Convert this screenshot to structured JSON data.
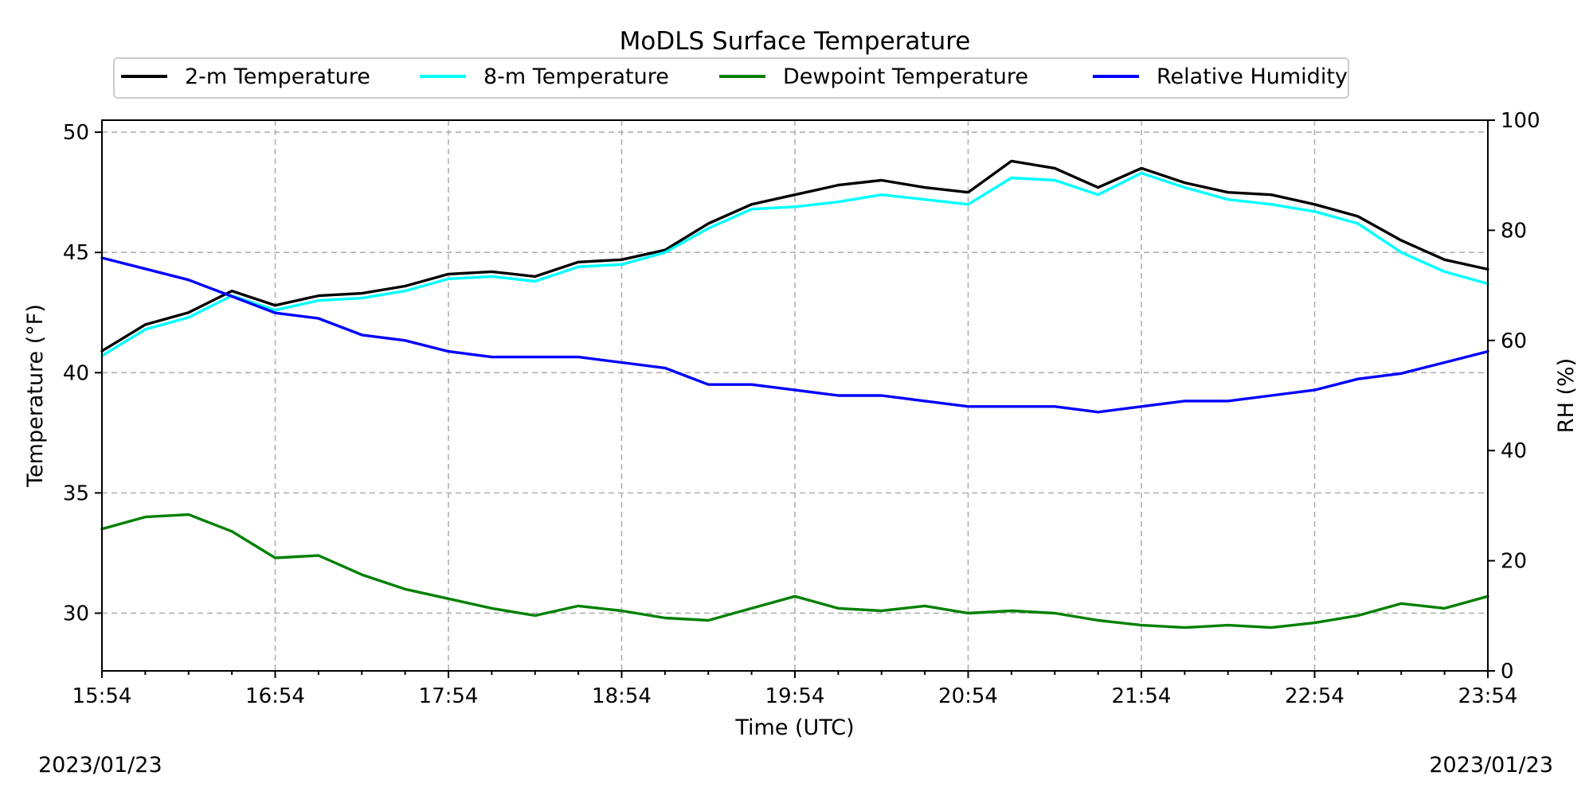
{
  "chart_data": {
    "type": "line",
    "title": "MoDLS Surface Temperature",
    "xlabel": "Time (UTC)",
    "ylabel": "Temperature ($^\\circ$F)",
    "ylabel_display": "Temperature (°F)",
    "y2label": "RH (%)",
    "x_ticks": [
      "15:54",
      "16:54",
      "17:54",
      "18:54",
      "19:54",
      "20:54",
      "21:54",
      "22:54",
      "23:54"
    ],
    "x_range_hours": [
      0,
      8
    ],
    "ylim": [
      27.6,
      50.5
    ],
    "y_ticks": [
      30,
      35,
      40,
      45,
      50
    ],
    "y2lim": [
      0,
      100
    ],
    "y2_ticks": [
      0,
      20,
      40,
      60,
      80,
      100
    ],
    "grid": true,
    "legend_placement": "top-center, outside plot, 4 columns",
    "date_left": "2023/01/23",
    "date_right": "2023/01/23",
    "series": [
      {
        "name": "2-m Temperature",
        "axis": "left",
        "color": "#000000",
        "x": [
          0,
          0.25,
          0.5,
          0.75,
          1.0,
          1.25,
          1.5,
          1.75,
          2.0,
          2.25,
          2.5,
          2.75,
          3.0,
          3.25,
          3.5,
          3.75,
          4.0,
          4.25,
          4.5,
          4.75,
          5.0,
          5.25,
          5.5,
          5.75,
          6.0,
          6.25,
          6.5,
          6.75,
          7.0,
          7.25,
          7.5,
          7.75,
          8.0
        ],
        "values": [
          40.9,
          42.0,
          42.5,
          43.4,
          42.8,
          43.2,
          43.3,
          43.6,
          44.1,
          44.2,
          44.0,
          44.6,
          44.7,
          45.1,
          46.2,
          47.0,
          47.4,
          47.8,
          48.0,
          47.7,
          47.5,
          48.8,
          48.5,
          47.7,
          48.5,
          47.9,
          47.5,
          47.4,
          47.0,
          46.5,
          45.5,
          44.7,
          44.3
        ]
      },
      {
        "name": "8-m Temperature",
        "axis": "left",
        "color": "#00ffff",
        "x": [
          0,
          0.25,
          0.5,
          0.75,
          1.0,
          1.25,
          1.5,
          1.75,
          2.0,
          2.25,
          2.5,
          2.75,
          3.0,
          3.25,
          3.5,
          3.75,
          4.0,
          4.25,
          4.5,
          4.75,
          5.0,
          5.25,
          5.5,
          5.75,
          6.0,
          6.25,
          6.5,
          6.75,
          7.0,
          7.25,
          7.5,
          7.75,
          8.0
        ],
        "values": [
          40.7,
          41.8,
          42.3,
          43.2,
          42.6,
          43.0,
          43.1,
          43.4,
          43.9,
          44.0,
          43.8,
          44.4,
          44.5,
          45.0,
          46.0,
          46.8,
          46.9,
          47.1,
          47.4,
          47.2,
          47.0,
          48.1,
          48.0,
          47.4,
          48.3,
          47.7,
          47.2,
          47.0,
          46.7,
          46.2,
          45.0,
          44.2,
          43.7
        ]
      },
      {
        "name": "Dewpoint Temperature",
        "axis": "left",
        "color": "#008000",
        "x": [
          0,
          0.25,
          0.5,
          0.75,
          1.0,
          1.25,
          1.5,
          1.75,
          2.0,
          2.25,
          2.5,
          2.75,
          3.0,
          3.25,
          3.5,
          3.75,
          4.0,
          4.25,
          4.5,
          4.75,
          5.0,
          5.25,
          5.5,
          5.75,
          6.0,
          6.25,
          6.5,
          6.75,
          7.0,
          7.25,
          7.5,
          7.75,
          8.0
        ],
        "values": [
          33.5,
          34.0,
          34.1,
          33.4,
          32.3,
          32.4,
          31.6,
          31.0,
          30.6,
          30.2,
          29.9,
          30.3,
          30.1,
          29.8,
          29.7,
          30.2,
          30.7,
          30.2,
          30.1,
          30.3,
          30.0,
          30.1,
          30.0,
          29.7,
          29.5,
          29.4,
          29.5,
          29.4,
          29.6,
          29.9,
          30.4,
          30.2,
          30.7
        ]
      },
      {
        "name": "Relative Humidity",
        "axis": "right",
        "color": "#0000ff",
        "x": [
          0,
          0.25,
          0.5,
          0.75,
          1.0,
          1.25,
          1.5,
          1.75,
          2.0,
          2.25,
          2.5,
          2.75,
          3.0,
          3.25,
          3.5,
          3.75,
          4.0,
          4.25,
          4.5,
          4.75,
          5.0,
          5.25,
          5.5,
          5.75,
          6.0,
          6.25,
          6.5,
          6.75,
          7.0,
          7.25,
          7.5,
          7.75,
          8.0
        ],
        "values": [
          75,
          73,
          71,
          68,
          65,
          64,
          61,
          60,
          58,
          57,
          57,
          57,
          56,
          55,
          52,
          52,
          51,
          50,
          50,
          49,
          48,
          48,
          48,
          47,
          48,
          49,
          49,
          50,
          51,
          53,
          54,
          56,
          58
        ]
      }
    ]
  }
}
